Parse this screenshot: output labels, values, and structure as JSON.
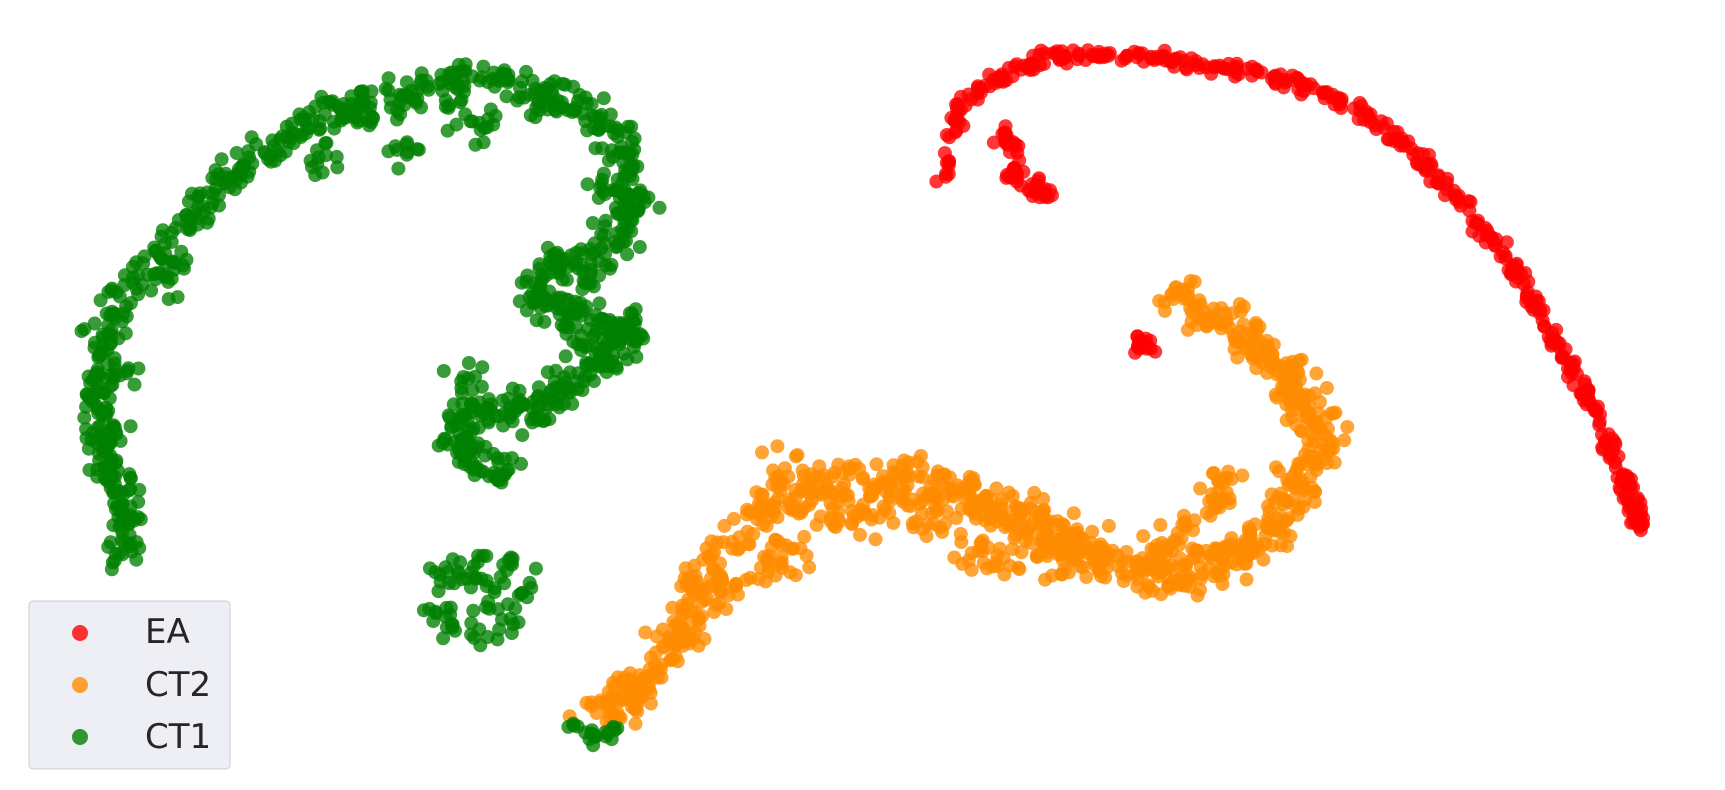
{
  "chart_data": {
    "type": "scatter",
    "title": "",
    "xlabel": "",
    "ylabel": "",
    "axes_visible": false,
    "grid": false,
    "xlim": [
      0,
      100
    ],
    "ylim": [
      0,
      100
    ],
    "legend": {
      "position": "bottom-left",
      "entries": [
        "EA",
        "CT2",
        "CT1"
      ]
    },
    "series": [
      {
        "name": "EA",
        "color": "#ff0000",
        "path": [
          [
            54.6,
            76.4
          ],
          [
            55.5,
            86.6
          ],
          [
            57.8,
            89.9
          ],
          [
            60.4,
            92.5
          ],
          [
            63.4,
            93.1
          ],
          [
            66.7,
            92.7
          ],
          [
            70.0,
            91.9
          ],
          [
            73.5,
            90.3
          ],
          [
            76.6,
            88.6
          ],
          [
            79.5,
            84.8
          ],
          [
            82.1,
            80.4
          ],
          [
            84.2,
            75.3
          ],
          [
            86.2,
            70.3
          ],
          [
            87.9,
            65.2
          ],
          [
            89.4,
            59.5
          ],
          [
            91.2,
            53.2
          ],
          [
            92.5,
            47.7
          ],
          [
            94.0,
            40.1
          ],
          [
            94.7,
            36.1
          ],
          [
            95.1,
            33.1
          ]
        ],
        "blob": [
          [
            58.9,
            78.2
          ],
          [
            60.2,
            76.0
          ],
          [
            58.4,
            82.3
          ],
          [
            66.4,
            56.4
          ]
        ]
      },
      {
        "name": "CT2",
        "color": "#ff8c00",
        "path": [
          [
            34.3,
            9.1
          ],
          [
            36.5,
            12.5
          ],
          [
            38.3,
            16.0
          ],
          [
            40.3,
            22.2
          ],
          [
            40.5,
            26.8
          ],
          [
            43.5,
            32.8
          ],
          [
            45.2,
            36.5
          ],
          [
            47.7,
            38.8
          ],
          [
            50.9,
            38.4
          ],
          [
            53.5,
            38.3
          ],
          [
            55.6,
            37.9
          ],
          [
            57.0,
            36.2
          ],
          [
            58.9,
            33.4
          ],
          [
            60.6,
            32.3
          ],
          [
            62.2,
            30.7
          ],
          [
            64.0,
            29.2
          ],
          [
            66.3,
            27.8
          ],
          [
            68.6,
            26.7
          ],
          [
            70.6,
            29.2
          ],
          [
            72.2,
            29.8
          ],
          [
            73.7,
            33.1
          ],
          [
            75.3,
            38.1
          ],
          [
            76.6,
            41.8
          ],
          [
            76.3,
            47.1
          ],
          [
            75.1,
            51.4
          ],
          [
            73.9,
            54.4
          ],
          [
            72.3,
            57.6
          ],
          [
            70.1,
            60.8
          ],
          [
            68.0,
            62.2
          ]
        ],
        "blob": [
          [
            44.5,
            28.4
          ],
          [
            48.3,
            35.1
          ],
          [
            53.8,
            34.1
          ],
          [
            57.8,
            29.5
          ],
          [
            62.7,
            31.1
          ],
          [
            68.7,
            31.7
          ],
          [
            70.9,
            38.6
          ],
          [
            74.8,
            49.1
          ],
          [
            70.4,
            36.2
          ],
          [
            66.9,
            30.0
          ],
          [
            61.2,
            29.0
          ],
          [
            56.5,
            30.2
          ],
          [
            50.4,
            34.7
          ],
          [
            46.0,
            30.1
          ],
          [
            42.1,
            25.8
          ],
          [
            39.5,
            19.0
          ],
          [
            36.8,
            11.5
          ],
          [
            45.5,
            40.4
          ],
          [
            52.2,
            39.9
          ],
          [
            59.9,
            35.8
          ]
        ]
      },
      {
        "name": "CT1",
        "color": "#008000",
        "path": [
          [
            7.6,
            28.9
          ],
          [
            7.3,
            34.4
          ],
          [
            6.4,
            39.5
          ],
          [
            5.9,
            44.6
          ],
          [
            5.5,
            50.1
          ],
          [
            5.8,
            55.6
          ],
          [
            6.7,
            61.1
          ],
          [
            8.9,
            66.3
          ],
          [
            10.7,
            71.6
          ],
          [
            12.6,
            76.6
          ],
          [
            14.8,
            80.5
          ],
          [
            17.6,
            83.8
          ],
          [
            20.0,
            86.2
          ],
          [
            22.6,
            87.7
          ],
          [
            25.6,
            89.9
          ],
          [
            28.5,
            90.0
          ],
          [
            31.4,
            88.0
          ],
          [
            33.9,
            86.0
          ],
          [
            35.8,
            82.5
          ],
          [
            36.4,
            76.8
          ],
          [
            36.7,
            73.2
          ],
          [
            35.2,
            68.7
          ],
          [
            32.3,
            66.6
          ],
          [
            30.8,
            62.9
          ],
          [
            32.6,
            60.4
          ],
          [
            34.6,
            59.2
          ],
          [
            36.6,
            58.9
          ],
          [
            35.9,
            55.4
          ],
          [
            33.9,
            52.6
          ],
          [
            31.9,
            49.4
          ],
          [
            29.6,
            47.6
          ],
          [
            27.2,
            48.1
          ],
          [
            26.3,
            44.5
          ],
          [
            27.9,
            41.8
          ],
          [
            29.3,
            39.8
          ]
        ],
        "cluster": [
          [
            27.6,
            29.0
          ],
          [
            29.3,
            28.5
          ],
          [
            30.3,
            25.2
          ],
          [
            29.7,
            21.3
          ],
          [
            27.9,
            20.0
          ],
          [
            26.1,
            20.6
          ],
          [
            25.6,
            23.3
          ],
          [
            26.9,
            26.4
          ],
          [
            28.3,
            24.5
          ],
          [
            25.8,
            27.5
          ]
        ],
        "tail": [
          [
            33.1,
            8.1
          ],
          [
            34.1,
            7.2
          ],
          [
            35.2,
            6.8
          ],
          [
            35.6,
            7.8
          ],
          [
            34.6,
            6.3
          ]
        ],
        "blob": [
          [
            21.5,
            84.9
          ],
          [
            28.0,
            84.0
          ],
          [
            31.6,
            86.4
          ],
          [
            34.9,
            76.8
          ],
          [
            34.1,
            64.3
          ],
          [
            33.8,
            57.0
          ],
          [
            30.2,
            48.8
          ],
          [
            27.3,
            51.5
          ],
          [
            9.9,
            64.7
          ],
          [
            7.1,
            52.4
          ],
          [
            6.4,
            46.1
          ],
          [
            7.0,
            38.0
          ],
          [
            23.6,
            80.8
          ],
          [
            18.4,
            79.6
          ],
          [
            26.5,
            85.4
          ]
        ]
      }
    ]
  }
}
